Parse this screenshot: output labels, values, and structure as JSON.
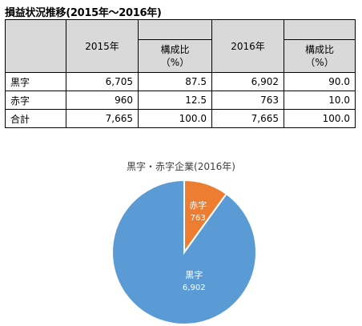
{
  "page": {
    "title": "損益状況推移(2015年～2016年)"
  },
  "table": {
    "headers": {
      "year_2015": "2015年",
      "year_2016": "2016年",
      "ratio_line1": "構成比",
      "ratio_line2": "（%）"
    },
    "rows": [
      {
        "label": "黒字",
        "v2015": "6,705",
        "r2015": "87.5",
        "v2016": "6,902",
        "r2016": "90.0"
      },
      {
        "label": "赤字",
        "v2015": "960",
        "r2015": "12.5",
        "v2016": "763",
        "r2016": "10.0"
      },
      {
        "label": "合計",
        "v2015": "7,665",
        "r2015": "100.0",
        "v2016": "7,665",
        "r2016": "100.0"
      }
    ]
  },
  "chart_data": {
    "type": "pie",
    "title": "黒字・赤字企業(2016年)",
    "slices": [
      {
        "name": "黒字",
        "value": 6902,
        "value_label": "6,902",
        "color": "#5b9bd5"
      },
      {
        "name": "赤字",
        "value": 763,
        "value_label": "763",
        "color": "#ed7d31"
      }
    ],
    "start": "red slice starts at top, clockwise",
    "legend": "none"
  }
}
